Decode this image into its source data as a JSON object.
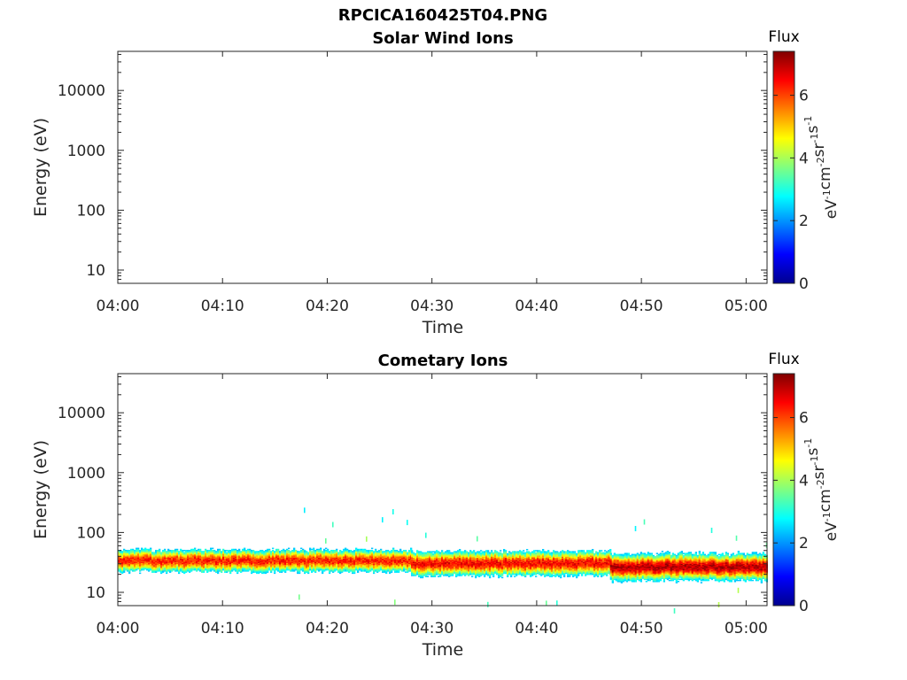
{
  "figure_title": "RPCICA160425T04.PNG",
  "colorbar": {
    "colormap": [
      "#00008f",
      "#0000ff",
      "#0080ff",
      "#00ffff",
      "#80ff80",
      "#ffff00",
      "#ff8000",
      "#ff0000",
      "#800000"
    ],
    "range": [
      0,
      7.4
    ]
  },
  "chart_data": [
    {
      "type": "heatmap",
      "title": "Solar Wind Ions",
      "xlabel": "Time",
      "ylabel": "Energy (eV)",
      "x_ticks": [
        "04:00",
        "04:10",
        "04:20",
        "04:30",
        "04:40",
        "04:50",
        "05:00"
      ],
      "xlim": [
        "04:00",
        "05:02"
      ],
      "y_ticks": [
        10,
        100,
        1000,
        10000
      ],
      "y_tick_labels": [
        "10",
        "100",
        "1000",
        "10000"
      ],
      "ylim": [
        6,
        45000
      ],
      "y_scale": "log",
      "colorbar_title": "Flux",
      "colorbar_unit": {
        "base": "eV",
        "parts": [
          [
            "eV",
            "-1"
          ],
          [
            "cm",
            "-2"
          ],
          [
            "sr",
            "-1"
          ],
          [
            "s",
            "-1"
          ]
        ]
      },
      "colorbar_ticks": [
        0,
        2,
        4,
        6
      ],
      "colorbar_range": [
        0,
        7.4
      ],
      "bands": []
    },
    {
      "type": "heatmap",
      "title": "Cometary Ions",
      "xlabel": "Time",
      "ylabel": "Energy (eV)",
      "x_ticks": [
        "04:00",
        "04:10",
        "04:20",
        "04:30",
        "04:40",
        "04:50",
        "05:00"
      ],
      "xlim": [
        "04:00",
        "05:02"
      ],
      "y_ticks": [
        10,
        100,
        1000,
        10000
      ],
      "y_tick_labels": [
        "10",
        "100",
        "1000",
        "10000"
      ],
      "ylim": [
        6,
        45000
      ],
      "y_scale": "log",
      "colorbar_title": "Flux",
      "colorbar_unit": {
        "parts": [
          [
            "eV",
            "-1"
          ],
          [
            "cm",
            "-2"
          ],
          [
            "sr",
            "-1"
          ],
          [
            "s",
            "-1"
          ]
        ]
      },
      "colorbar_ticks": [
        0,
        2,
        4,
        6
      ],
      "colorbar_range": [
        0,
        7.4
      ],
      "bands": [
        {
          "time_start": "04:00",
          "time_end": "04:28",
          "energy_center": 33,
          "energy_low": 22,
          "energy_high": 48,
          "peak_flux": 6.3
        },
        {
          "time_start": "04:28",
          "time_end": "04:47",
          "energy_center": 30,
          "energy_low": 19,
          "energy_high": 45,
          "peak_flux": 6.5
        },
        {
          "time_start": "04:47",
          "time_end": "05:02",
          "energy_center": 26,
          "energy_low": 16,
          "energy_high": 40,
          "peak_flux": 7.0
        }
      ]
    }
  ]
}
